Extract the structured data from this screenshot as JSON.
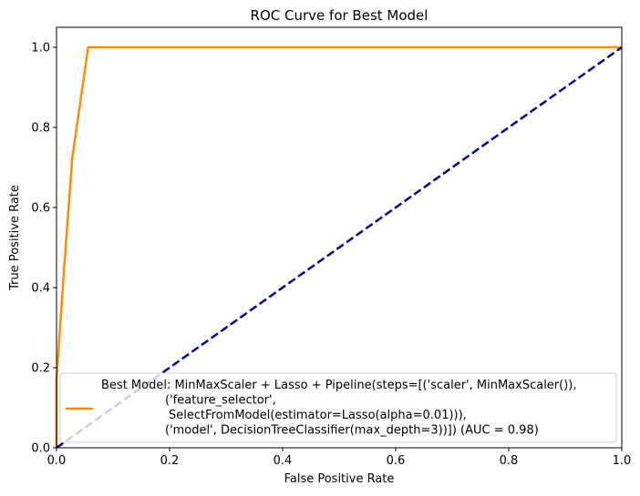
{
  "chart_data": {
    "type": "line",
    "title": "ROC Curve for Best Model",
    "xlabel": "False Positive Rate",
    "ylabel": "True Positive Rate",
    "xlim": [
      0.0,
      1.0
    ],
    "ylim": [
      0.0,
      1.05
    ],
    "xticks": [
      "0.0",
      "0.2",
      "0.4",
      "0.6",
      "0.8",
      "1.0"
    ],
    "yticks": [
      "0.0",
      "0.2",
      "0.4",
      "0.6",
      "0.8",
      "1.0"
    ],
    "grid": false,
    "legend_position": "lower right",
    "series": [
      {
        "name": "Best Model: MinMaxScaler + Lasso + Pipeline(steps=[('scaler', MinMaxScaler()),\n                ('feature_selector',\n                 SelectFromModel(estimator=Lasso(alpha=0.01))),\n                ('model', DecisionTreeClassifier(max_depth=3))]) (AUC = 0.98)",
        "color": "#ff8c00",
        "style": "solid",
        "x": [
          0.0,
          0.0,
          0.014,
          0.028,
          0.056,
          1.0
        ],
        "y": [
          0.0,
          0.17,
          0.46,
          0.725,
          1.0,
          1.0
        ]
      },
      {
        "color": "#000080",
        "style": "dashed",
        "x": [
          0.0,
          1.0
        ],
        "y": [
          0.0,
          1.0
        ]
      }
    ]
  }
}
